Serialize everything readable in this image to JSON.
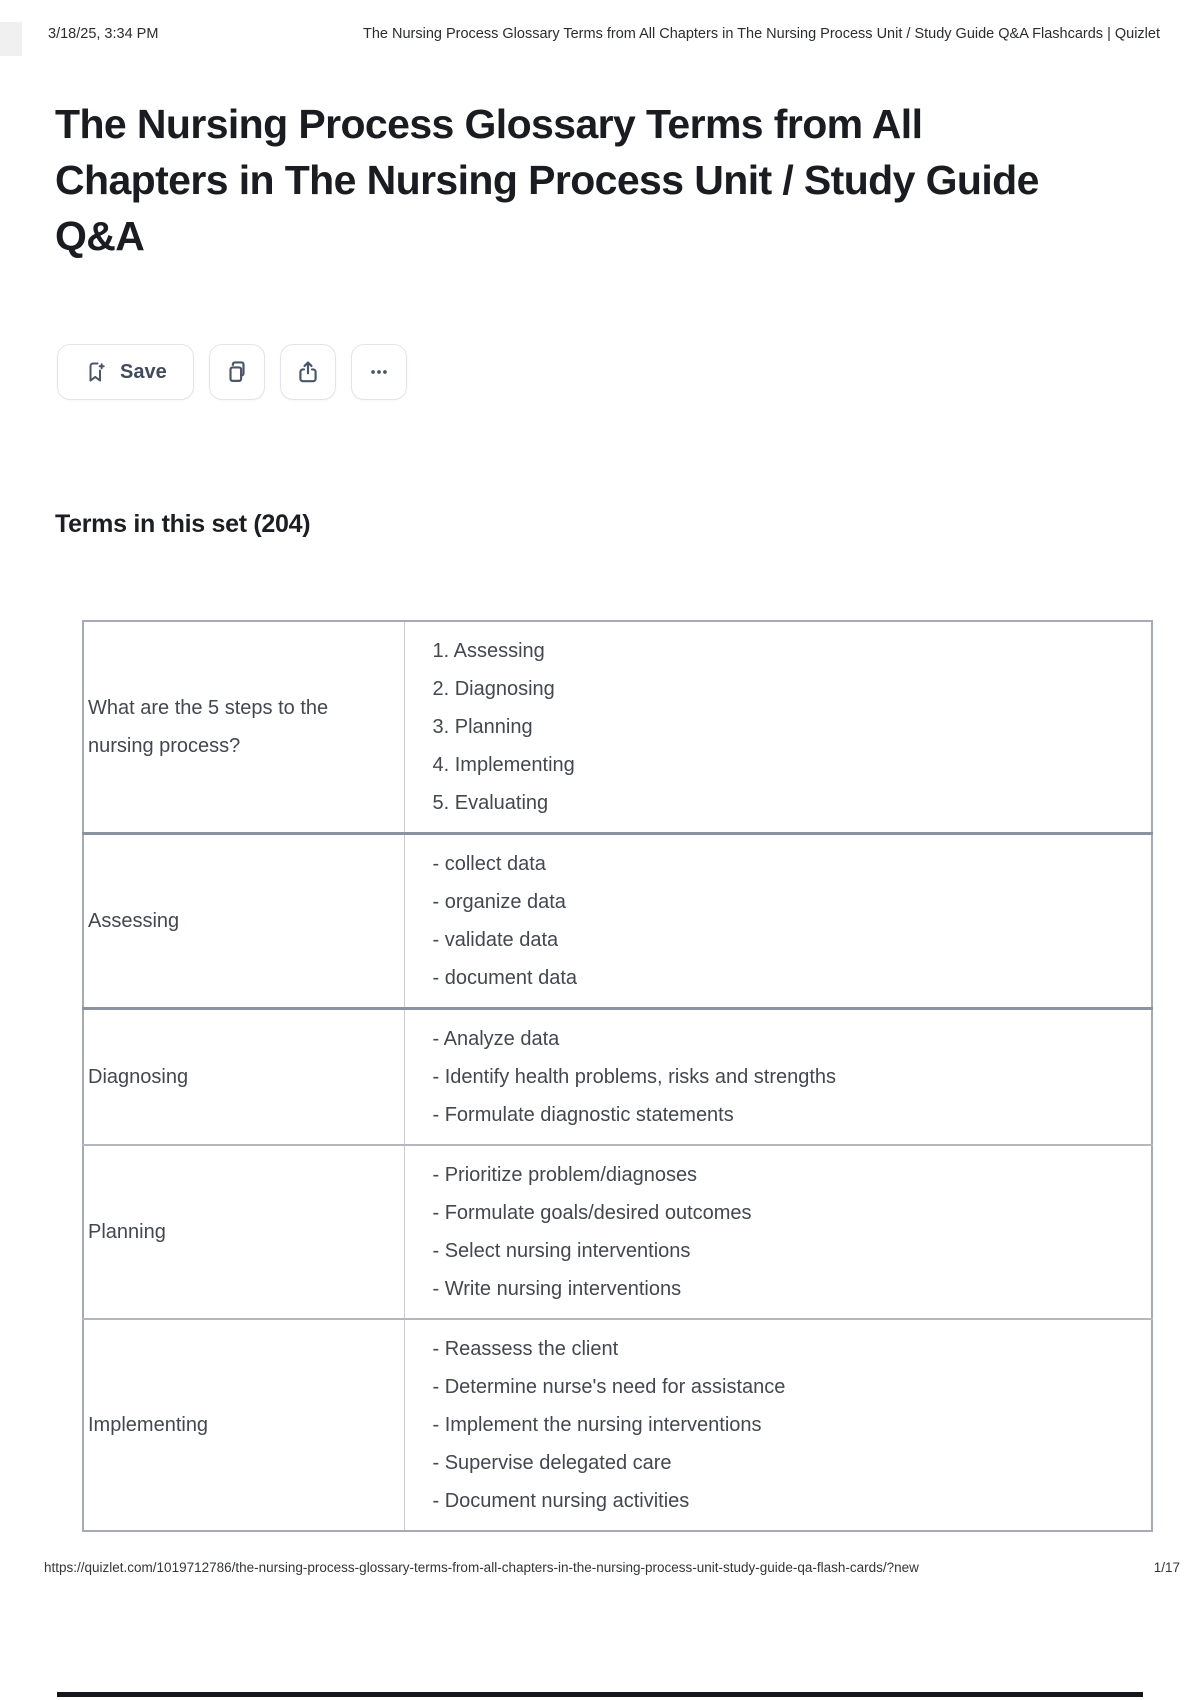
{
  "print_header": {
    "datetime": "3/18/25, 3:34 PM",
    "doc_title": "The Nursing Process Glossary Terms from All Chapters in The Nursing Process Unit / Study Guide Q&A Flashcards | Quizlet"
  },
  "page": {
    "title": "The Nursing Process Glossary Terms from All Chapters in The Nursing Process Unit / Study Guide Q&A",
    "section_heading": "Terms in this set (204)"
  },
  "toolbar": {
    "save_label": "Save",
    "icons": {
      "save": "bookmark-plus-icon",
      "copy": "copy-icon",
      "share": "share-icon",
      "more": "ellipsis-icon"
    }
  },
  "terms": [
    {
      "term": "What are the 5 steps to the nursing process?",
      "definition_lines": [
        "1. Assessing",
        "2. Diagnosing",
        "3. Planning",
        "4. Implementing",
        "5. Evaluating"
      ]
    },
    {
      "term": "Assessing",
      "definition_lines": [
        "- collect data",
        "- organize data",
        "- validate data",
        "- document data"
      ]
    },
    {
      "term": "Diagnosing",
      "definition_lines": [
        "- Analyze data",
        "- Identify health problems, risks and strengths",
        "- Formulate diagnostic statements"
      ]
    },
    {
      "term": "Planning",
      "definition_lines": [
        "- Prioritize problem/diagnoses",
        "- Formulate goals/desired outcomes",
        "- Select nursing interventions",
        "- Write nursing interventions"
      ]
    },
    {
      "term": "Implementing",
      "definition_lines": [
        "- Reassess the client",
        "- Determine nurse's need for assistance",
        "- Implement the nursing interventions",
        "- Supervise delegated care",
        "- Document nursing activities"
      ]
    }
  ],
  "print_footer": {
    "url": "https://quizlet.com/1019712786/the-nursing-process-glossary-terms-from-all-chapters-in-the-nursing-process-unit-study-guide-qa-flash-cards/?new",
    "page_indicator": "1/17"
  },
  "colors": {
    "icon": "#4b5568",
    "button_border": "#e2e4ec",
    "divider_thick": "#8b93a3",
    "divider_thin": "#b3b7be",
    "table_border": "#a6aab2",
    "table_text": "#43474f",
    "next_page_edge": "#15171c"
  }
}
